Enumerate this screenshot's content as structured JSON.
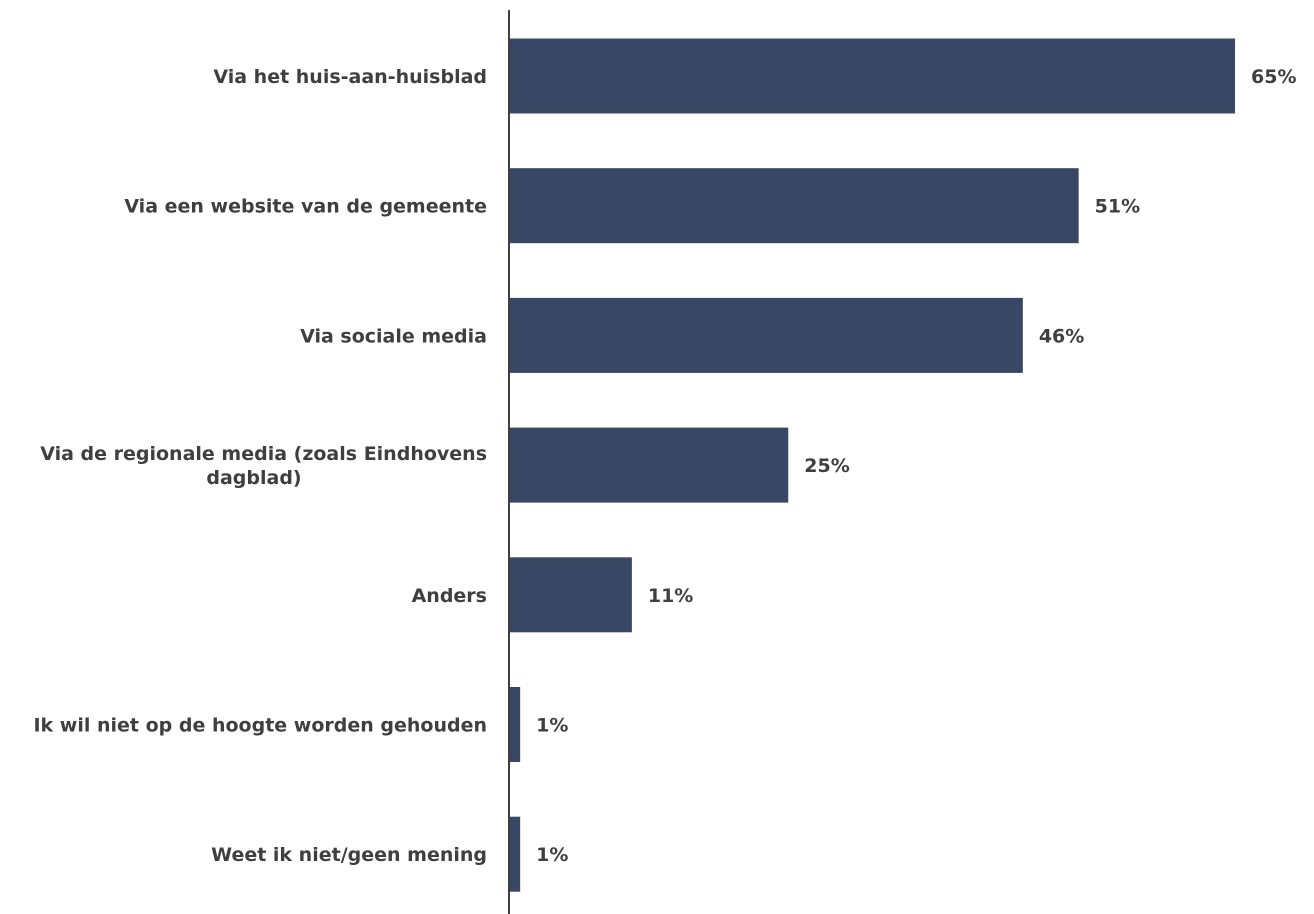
{
  "chart_data": {
    "type": "bar",
    "orientation": "horizontal",
    "title": "",
    "xlabel": "",
    "ylabel": "",
    "categories": [
      "Via het huis-aan-huisblad",
      "Via een website van de gemeente",
      "Via sociale media",
      "Via de regionale media (zoals Eindhovens dagblad)",
      "Anders",
      "Ik wil niet op de hoogte worden gehouden",
      "Weet ik niet/geen mening"
    ],
    "category_lines": [
      [
        "Via het huis-aan-huisblad"
      ],
      [
        "Via een website van de gemeente"
      ],
      [
        "Via sociale media"
      ],
      [
        "Via de regionale media (zoals Eindhovens",
        "dagblad)"
      ],
      [
        "Anders"
      ],
      [
        "Ik wil niet op de hoogte worden gehouden"
      ],
      [
        "Weet ik niet/geen mening"
      ]
    ],
    "values": [
      65,
      51,
      46,
      25,
      11,
      1,
      1
    ],
    "value_labels": [
      "65%",
      "51%",
      "46%",
      "25%",
      "11%",
      "1%",
      "1%"
    ],
    "unit": "%",
    "grid": false,
    "legend": "none"
  },
  "colors": {
    "bar": "#384764",
    "text": "#3f3f3f",
    "axis": "#3f3f3f"
  }
}
